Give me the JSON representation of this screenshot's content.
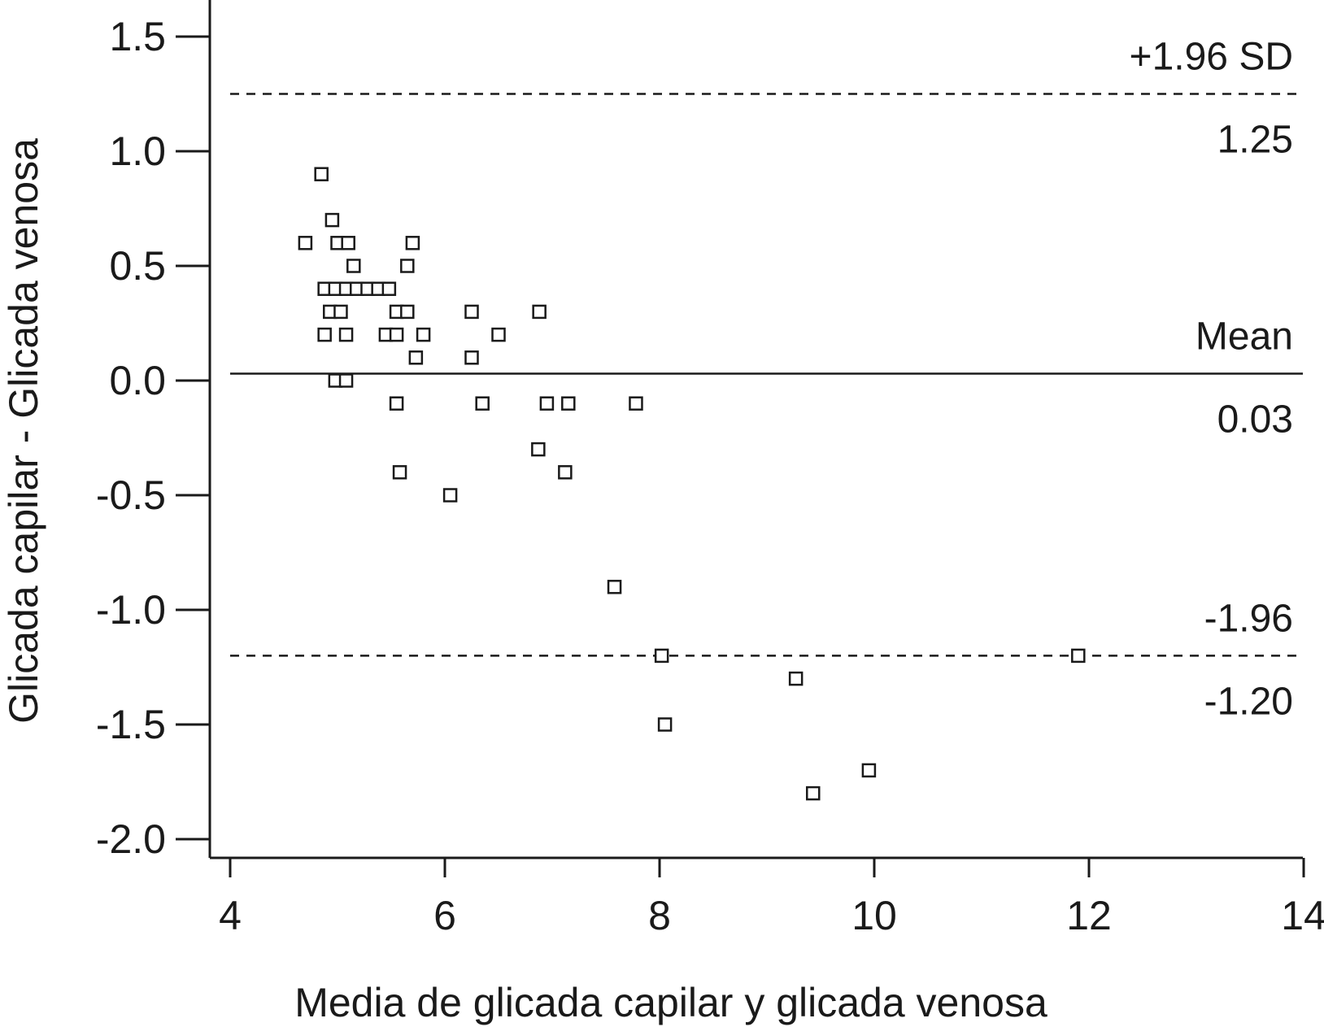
{
  "chart_data": {
    "type": "scatter",
    "xlabel": "Media de glicada capilar y glicada venosa",
    "ylabel": "Glicada capilar - Glicada venosa",
    "xlim": [
      4,
      14
    ],
    "ylim": [
      -2.0,
      1.5
    ],
    "x_ticks": [
      4,
      6,
      8,
      10,
      12,
      14
    ],
    "x_tick_labels": [
      "4",
      "6",
      "8",
      "10",
      "12",
      "14"
    ],
    "y_ticks": [
      1.5,
      1.0,
      0.5,
      0.0,
      -0.5,
      -1.0,
      -1.5,
      -2.0
    ],
    "y_tick_labels": [
      "1.5",
      "1.0",
      "0.5",
      "0.0",
      "-0.5",
      "-1.0",
      "-1.5",
      "-2.0"
    ],
    "grid": false,
    "marker": "open-square",
    "reference_lines": [
      {
        "value": 1.25,
        "style": "dashed",
        "label": "+1.96 SD",
        "value_label": "1.25"
      },
      {
        "value": 0.03,
        "style": "solid",
        "label": "Mean",
        "value_label": "0.03"
      },
      {
        "value": -1.2,
        "style": "dashed",
        "label": "-1.96",
        "value_label": "-1.20"
      }
    ],
    "points": [
      [
        4.85,
        0.9
      ],
      [
        4.95,
        0.7
      ],
      [
        4.7,
        0.6
      ],
      [
        5.0,
        0.6
      ],
      [
        5.1,
        0.6
      ],
      [
        5.7,
        0.6
      ],
      [
        5.15,
        0.5
      ],
      [
        5.65,
        0.5
      ],
      [
        4.88,
        0.4
      ],
      [
        4.98,
        0.4
      ],
      [
        5.08,
        0.4
      ],
      [
        5.18,
        0.4
      ],
      [
        5.28,
        0.4
      ],
      [
        5.38,
        0.4
      ],
      [
        5.48,
        0.4
      ],
      [
        4.93,
        0.3
      ],
      [
        5.03,
        0.3
      ],
      [
        5.55,
        0.3
      ],
      [
        5.65,
        0.3
      ],
      [
        6.25,
        0.3
      ],
      [
        6.88,
        0.3
      ],
      [
        4.88,
        0.2
      ],
      [
        5.08,
        0.2
      ],
      [
        5.45,
        0.2
      ],
      [
        5.55,
        0.2
      ],
      [
        5.8,
        0.2
      ],
      [
        6.5,
        0.2
      ],
      [
        5.73,
        0.1
      ],
      [
        6.25,
        0.1
      ],
      [
        4.98,
        0.0
      ],
      [
        5.08,
        0.0
      ],
      [
        5.55,
        -0.1
      ],
      [
        6.35,
        -0.1
      ],
      [
        6.95,
        -0.1
      ],
      [
        7.15,
        -0.1
      ],
      [
        7.78,
        -0.1
      ],
      [
        6.87,
        -0.3
      ],
      [
        5.58,
        -0.4
      ],
      [
        7.12,
        -0.4
      ],
      [
        6.05,
        -0.5
      ],
      [
        7.58,
        -0.9
      ],
      [
        8.02,
        -1.2
      ],
      [
        11.9,
        -1.2
      ],
      [
        9.27,
        -1.3
      ],
      [
        8.05,
        -1.5
      ],
      [
        9.95,
        -1.7
      ],
      [
        9.43,
        -1.8
      ]
    ]
  }
}
